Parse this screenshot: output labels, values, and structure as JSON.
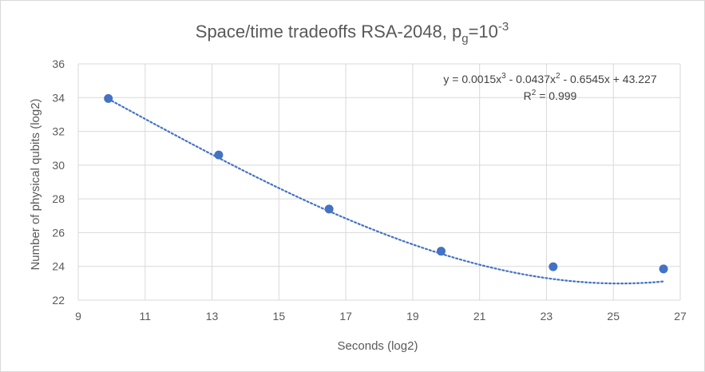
{
  "chart_data": {
    "type": "scatter",
    "title": {
      "main": "Space/time tradeoffs RSA-2048, p",
      "sub": "g",
      "mid": "=10",
      "sup": "-3"
    },
    "xlabel": "Seconds (log2)",
    "ylabel": "Number of physical qubits (log2)",
    "xlim": [
      9,
      27
    ],
    "ylim": [
      22,
      36
    ],
    "x_ticks": [
      9,
      11,
      13,
      15,
      17,
      19,
      21,
      23,
      25,
      27
    ],
    "y_ticks": [
      22,
      24,
      26,
      28,
      30,
      32,
      34,
      36
    ],
    "grid": true,
    "series": [
      {
        "x": [
          9.9,
          13.2,
          16.5,
          19.85,
          23.2,
          26.5
        ],
        "y": [
          33.95,
          30.6,
          27.4,
          24.9,
          23.98,
          23.85
        ],
        "color": "#4472C4"
      }
    ],
    "trendline": {
      "type": "polynomial",
      "order": 3,
      "coefficients": [
        0.0015,
        -0.0437,
        -0.6545,
        43.227
      ],
      "color": "#4472C4",
      "style": "dotted",
      "equation": {
        "p1": "y = 0.0015x",
        "s1": "3",
        "p2": " - 0.0437x",
        "s2": "2",
        "p3": " - 0.6545x + 43.227"
      },
      "r2": {
        "p1": "R",
        "s1": "2",
        "p2": " = 0.999"
      }
    }
  }
}
